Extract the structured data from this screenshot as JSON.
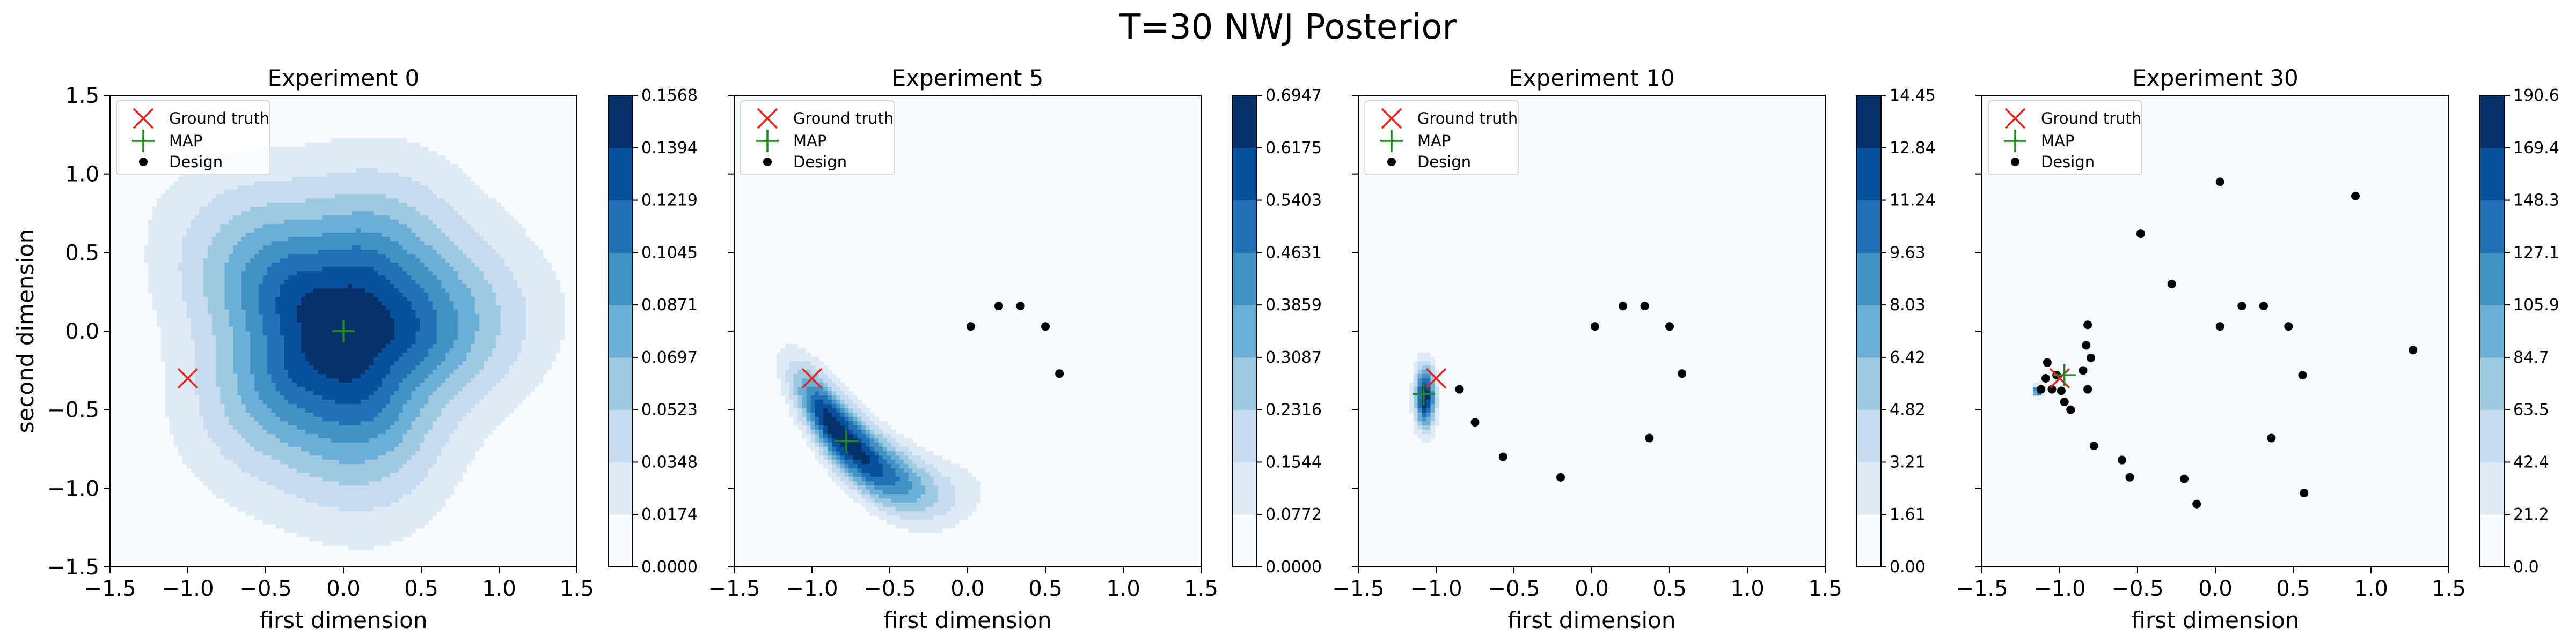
{
  "figure": {
    "title": "T=30 NWJ Posterior",
    "xlabel": "first dimension",
    "ylabel": "second dimension",
    "tick_labels": [
      "−1.5",
      "−1.0",
      "−0.5",
      "0.0",
      "0.5",
      "1.0",
      "1.5"
    ],
    "legend": {
      "ground_truth": "Ground truth",
      "map": "MAP",
      "design": "Design"
    },
    "colors": {
      "ground_truth": "#e8221e",
      "map": "#1f8a1f",
      "design": "#000000",
      "colormap": "Blues"
    }
  },
  "chart_data": [
    {
      "type": "contour",
      "title": "Experiment 0",
      "xlim": [
        -1.5,
        1.5
      ],
      "ylim": [
        -1.5,
        1.5
      ],
      "levels": [
        "0.0000",
        "0.0174",
        "0.0348",
        "0.0523",
        "0.0697",
        "0.0871",
        "0.1045",
        "0.1219",
        "0.1394",
        "0.1568"
      ],
      "ground_truth": [
        -1.0,
        -0.3
      ],
      "map": [
        0.0,
        0.0
      ],
      "designs": []
    },
    {
      "type": "contour",
      "title": "Experiment 5",
      "xlim": [
        -1.5,
        1.5
      ],
      "ylim": [
        -1.5,
        1.5
      ],
      "levels": [
        "0.0000",
        "0.0772",
        "0.1544",
        "0.2316",
        "0.3087",
        "0.3859",
        "0.4631",
        "0.5403",
        "0.6175",
        "0.6947"
      ],
      "ground_truth": [
        -1.0,
        -0.3
      ],
      "map": [
        -0.78,
        -0.7
      ],
      "designs": [
        [
          0.02,
          0.03
        ],
        [
          0.2,
          0.16
        ],
        [
          0.34,
          0.16
        ],
        [
          0.5,
          0.03
        ],
        [
          0.59,
          -0.27
        ]
      ]
    },
    {
      "type": "contour",
      "title": "Experiment 10",
      "xlim": [
        -1.5,
        1.5
      ],
      "ylim": [
        -1.5,
        1.5
      ],
      "levels": [
        "0.00",
        "1.61",
        "3.21",
        "4.82",
        "6.42",
        "8.03",
        "9.63",
        "11.24",
        "12.84",
        "14.45"
      ],
      "ground_truth": [
        -1.0,
        -0.3
      ],
      "map": [
        -1.08,
        -0.4
      ],
      "designs": [
        [
          0.02,
          0.03
        ],
        [
          0.2,
          0.16
        ],
        [
          0.34,
          0.16
        ],
        [
          0.5,
          0.03
        ],
        [
          0.58,
          -0.27
        ],
        [
          -0.2,
          -0.93
        ],
        [
          -0.57,
          -0.8
        ],
        [
          -0.75,
          -0.58
        ],
        [
          -0.85,
          -0.37
        ],
        [
          0.37,
          -0.68
        ]
      ]
    },
    {
      "type": "contour",
      "title": "Experiment 30",
      "xlim": [
        -1.5,
        1.5
      ],
      "ylim": [
        -1.5,
        1.5
      ],
      "levels": [
        "0.0",
        "21.2",
        "42.4",
        "63.5",
        "84.7",
        "105.9",
        "127.1",
        "148.3",
        "169.4",
        "190.6"
      ],
      "ground_truth": [
        -1.0,
        -0.3
      ],
      "map": [
        -0.97,
        -0.28
      ],
      "designs": [
        [
          0.03,
          0.95
        ],
        [
          0.9,
          0.86
        ],
        [
          -0.48,
          0.62
        ],
        [
          -0.28,
          0.3
        ],
        [
          0.17,
          0.16
        ],
        [
          0.31,
          0.16
        ],
        [
          0.03,
          0.03
        ],
        [
          0.47,
          0.03
        ],
        [
          1.27,
          -0.12
        ],
        [
          0.56,
          -0.28
        ],
        [
          -0.82,
          0.04
        ],
        [
          -0.83,
          -0.09
        ],
        [
          -0.8,
          -0.17
        ],
        [
          -1.08,
          -0.2
        ],
        [
          -1.09,
          -0.3
        ],
        [
          -1.05,
          -0.37
        ],
        [
          -0.97,
          -0.45
        ],
        [
          -0.93,
          -0.5
        ],
        [
          -0.82,
          -0.37
        ],
        [
          -0.78,
          -0.73
        ],
        [
          -0.6,
          -0.82
        ],
        [
          -0.55,
          -0.93
        ],
        [
          -0.2,
          -0.94
        ],
        [
          -0.12,
          -1.1
        ],
        [
          0.36,
          -0.68
        ],
        [
          0.57,
          -1.03
        ],
        [
          -1.12,
          -0.37
        ],
        [
          -0.99,
          -0.38
        ],
        [
          -1.02,
          -0.28
        ],
        [
          -0.85,
          -0.25
        ]
      ]
    }
  ]
}
